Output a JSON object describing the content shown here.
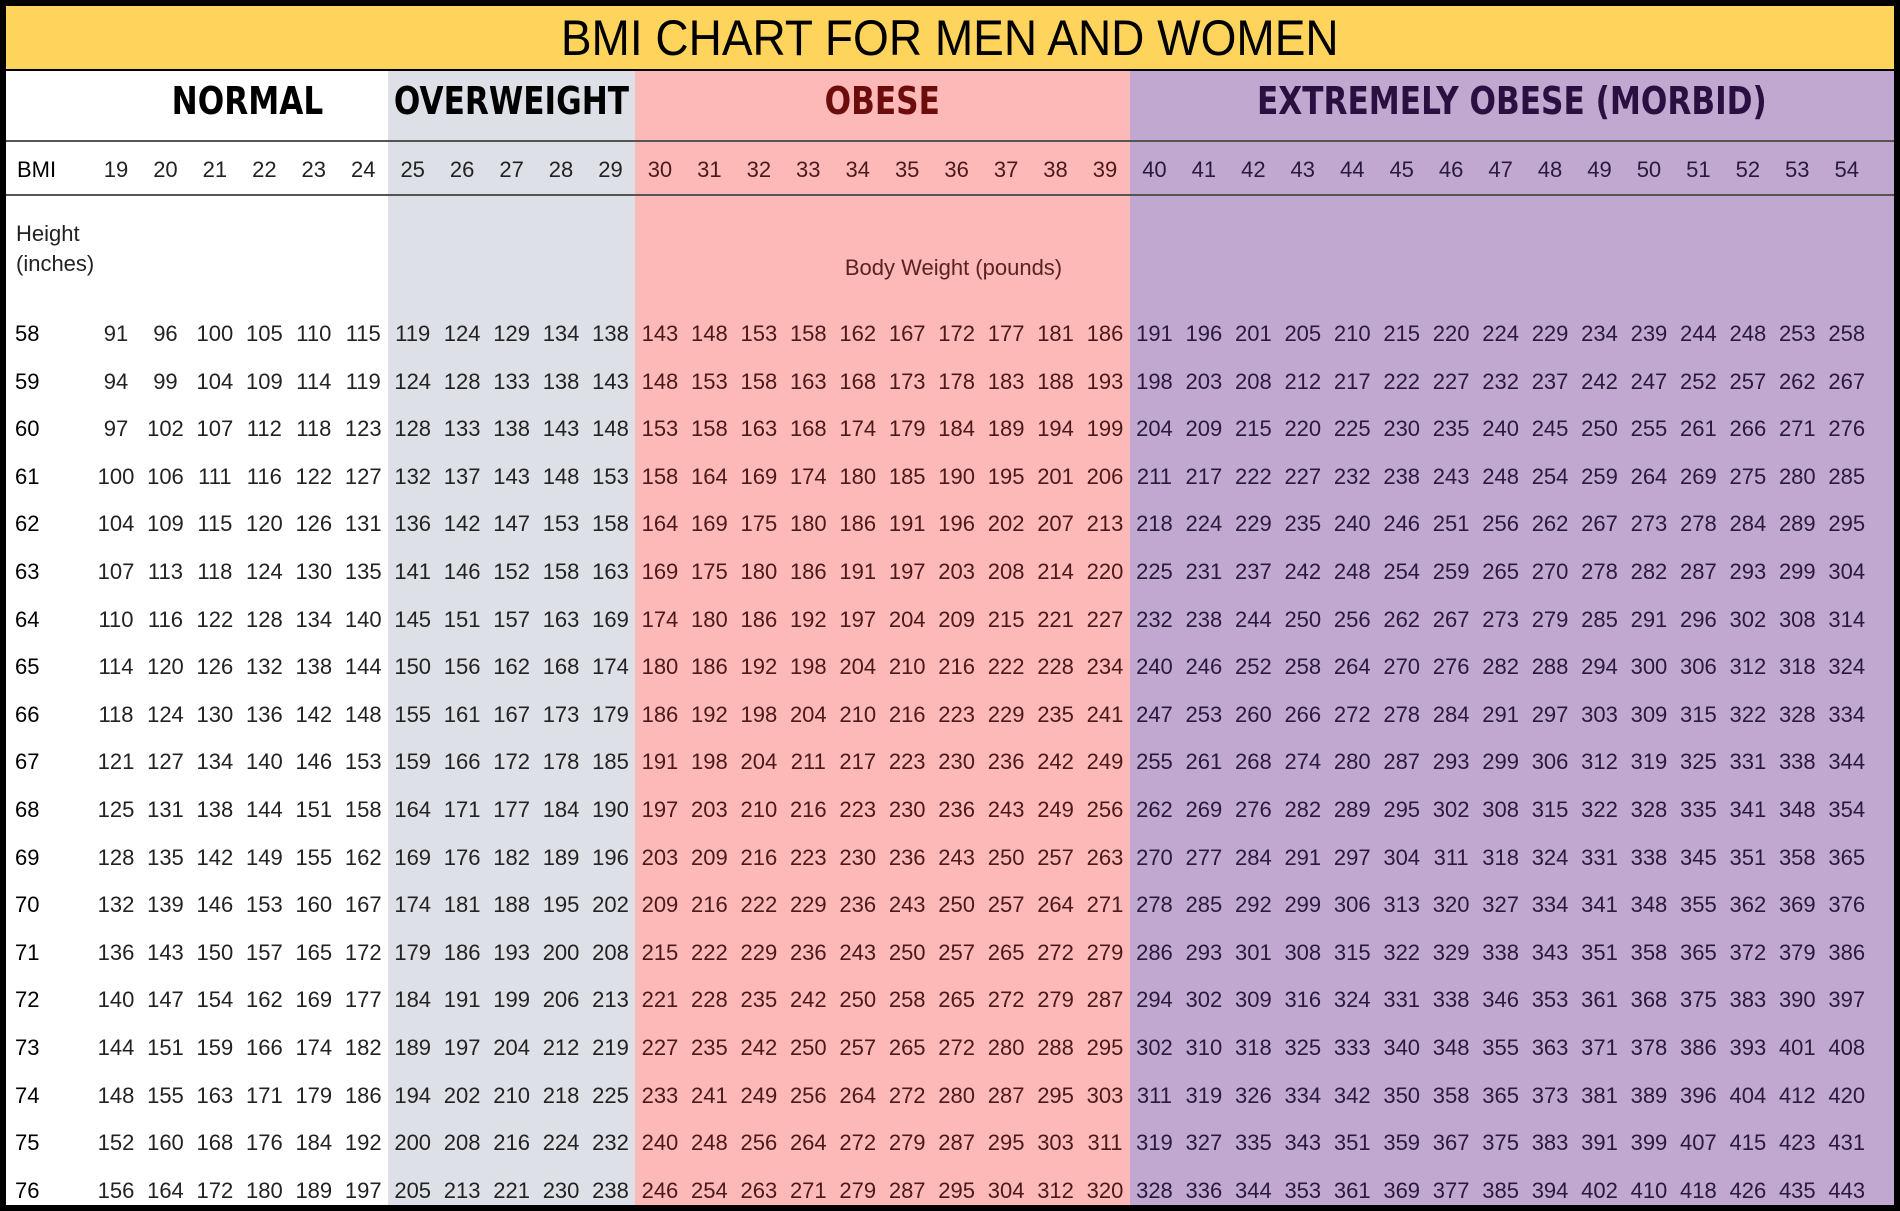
{
  "title": "BMI CHART FOR MEN AND WOMEN",
  "categories": [
    {
      "label": "NORMAL",
      "bg": "#ffffff",
      "text_color": "#000000",
      "cell_color": "#222222"
    },
    {
      "label": "OVERWEIGHT",
      "bg": "#dde0e6",
      "text_color": "#000000",
      "cell_color": "#222222"
    },
    {
      "label": "OBESE",
      "bg": "#fdb8b8",
      "text_color": "#6b0d0d",
      "cell_color": "#4a1a1a"
    },
    {
      "label": "EXTREMELY OBESE (MORBID)",
      "bg": "#c0a8d0",
      "text_color": "#2a1040",
      "cell_color": "#2a1a3a"
    }
  ],
  "header_label": "BMI",
  "height_label": "Height\n(inches)",
  "weight_label": "Body Weight (pounds)",
  "chart_data": {
    "type": "table",
    "title": "BMI CHART FOR MEN AND WOMEN",
    "bmi": [
      19,
      20,
      21,
      22,
      23,
      24,
      25,
      26,
      27,
      28,
      29,
      30,
      31,
      32,
      33,
      34,
      35,
      36,
      37,
      38,
      39,
      40,
      41,
      42,
      43,
      44,
      45,
      46,
      47,
      48,
      49,
      50,
      51,
      52,
      53,
      54
    ],
    "bmi_category_index": [
      0,
      0,
      0,
      0,
      0,
      0,
      1,
      1,
      1,
      1,
      1,
      2,
      2,
      2,
      2,
      2,
      2,
      2,
      2,
      2,
      2,
      3,
      3,
      3,
      3,
      3,
      3,
      3,
      3,
      3,
      3,
      3,
      3,
      3,
      3,
      3
    ],
    "heights": [
      58,
      59,
      60,
      61,
      62,
      63,
      64,
      65,
      66,
      67,
      68,
      69,
      70,
      71,
      72,
      73,
      74,
      75,
      76
    ],
    "weights": [
      [
        91,
        96,
        100,
        105,
        110,
        115,
        119,
        124,
        129,
        134,
        138,
        143,
        148,
        153,
        158,
        162,
        167,
        172,
        177,
        181,
        186,
        191,
        196,
        201,
        205,
        210,
        215,
        220,
        224,
        229,
        234,
        239,
        244,
        248,
        253,
        258
      ],
      [
        94,
        99,
        104,
        109,
        114,
        119,
        124,
        128,
        133,
        138,
        143,
        148,
        153,
        158,
        163,
        168,
        173,
        178,
        183,
        188,
        193,
        198,
        203,
        208,
        212,
        217,
        222,
        227,
        232,
        237,
        242,
        247,
        252,
        257,
        262,
        267
      ],
      [
        97,
        102,
        107,
        112,
        118,
        123,
        128,
        133,
        138,
        143,
        148,
        153,
        158,
        163,
        168,
        174,
        179,
        184,
        189,
        194,
        199,
        204,
        209,
        215,
        220,
        225,
        230,
        235,
        240,
        245,
        250,
        255,
        261,
        266,
        271,
        276
      ],
      [
        100,
        106,
        111,
        116,
        122,
        127,
        132,
        137,
        143,
        148,
        153,
        158,
        164,
        169,
        174,
        180,
        185,
        190,
        195,
        201,
        206,
        211,
        217,
        222,
        227,
        232,
        238,
        243,
        248,
        254,
        259,
        264,
        269,
        275,
        280,
        285
      ],
      [
        104,
        109,
        115,
        120,
        126,
        131,
        136,
        142,
        147,
        153,
        158,
        164,
        169,
        175,
        180,
        186,
        191,
        196,
        202,
        207,
        213,
        218,
        224,
        229,
        235,
        240,
        246,
        251,
        256,
        262,
        267,
        273,
        278,
        284,
        289,
        295
      ],
      [
        107,
        113,
        118,
        124,
        130,
        135,
        141,
        146,
        152,
        158,
        163,
        169,
        175,
        180,
        186,
        191,
        197,
        203,
        208,
        214,
        220,
        225,
        231,
        237,
        242,
        248,
        254,
        259,
        265,
        270,
        278,
        282,
        287,
        293,
        299,
        304
      ],
      [
        110,
        116,
        122,
        128,
        134,
        140,
        145,
        151,
        157,
        163,
        169,
        174,
        180,
        186,
        192,
        197,
        204,
        209,
        215,
        221,
        227,
        232,
        238,
        244,
        250,
        256,
        262,
        267,
        273,
        279,
        285,
        291,
        296,
        302,
        308,
        314
      ],
      [
        114,
        120,
        126,
        132,
        138,
        144,
        150,
        156,
        162,
        168,
        174,
        180,
        186,
        192,
        198,
        204,
        210,
        216,
        222,
        228,
        234,
        240,
        246,
        252,
        258,
        264,
        270,
        276,
        282,
        288,
        294,
        300,
        306,
        312,
        318,
        324
      ],
      [
        118,
        124,
        130,
        136,
        142,
        148,
        155,
        161,
        167,
        173,
        179,
        186,
        192,
        198,
        204,
        210,
        216,
        223,
        229,
        235,
        241,
        247,
        253,
        260,
        266,
        272,
        278,
        284,
        291,
        297,
        303,
        309,
        315,
        322,
        328,
        334
      ],
      [
        121,
        127,
        134,
        140,
        146,
        153,
        159,
        166,
        172,
        178,
        185,
        191,
        198,
        204,
        211,
        217,
        223,
        230,
        236,
        242,
        249,
        255,
        261,
        268,
        274,
        280,
        287,
        293,
        299,
        306,
        312,
        319,
        325,
        331,
        338,
        344
      ],
      [
        125,
        131,
        138,
        144,
        151,
        158,
        164,
        171,
        177,
        184,
        190,
        197,
        203,
        210,
        216,
        223,
        230,
        236,
        243,
        249,
        256,
        262,
        269,
        276,
        282,
        289,
        295,
        302,
        308,
        315,
        322,
        328,
        335,
        341,
        348,
        354
      ],
      [
        128,
        135,
        142,
        149,
        155,
        162,
        169,
        176,
        182,
        189,
        196,
        203,
        209,
        216,
        223,
        230,
        236,
        243,
        250,
        257,
        263,
        270,
        277,
        284,
        291,
        297,
        304,
        311,
        318,
        324,
        331,
        338,
        345,
        351,
        358,
        365
      ],
      [
        132,
        139,
        146,
        153,
        160,
        167,
        174,
        181,
        188,
        195,
        202,
        209,
        216,
        222,
        229,
        236,
        243,
        250,
        257,
        264,
        271,
        278,
        285,
        292,
        299,
        306,
        313,
        320,
        327,
        334,
        341,
        348,
        355,
        362,
        369,
        376
      ],
      [
        136,
        143,
        150,
        157,
        165,
        172,
        179,
        186,
        193,
        200,
        208,
        215,
        222,
        229,
        236,
        243,
        250,
        257,
        265,
        272,
        279,
        286,
        293,
        301,
        308,
        315,
        322,
        329,
        338,
        343,
        351,
        358,
        365,
        372,
        379,
        386
      ],
      [
        140,
        147,
        154,
        162,
        169,
        177,
        184,
        191,
        199,
        206,
        213,
        221,
        228,
        235,
        242,
        250,
        258,
        265,
        272,
        279,
        287,
        294,
        302,
        309,
        316,
        324,
        331,
        338,
        346,
        353,
        361,
        368,
        375,
        383,
        390,
        397
      ],
      [
        144,
        151,
        159,
        166,
        174,
        182,
        189,
        197,
        204,
        212,
        219,
        227,
        235,
        242,
        250,
        257,
        265,
        272,
        280,
        288,
        295,
        302,
        310,
        318,
        325,
        333,
        340,
        348,
        355,
        363,
        371,
        378,
        386,
        393,
        401,
        408
      ],
      [
        148,
        155,
        163,
        171,
        179,
        186,
        194,
        202,
        210,
        218,
        225,
        233,
        241,
        249,
        256,
        264,
        272,
        280,
        287,
        295,
        303,
        311,
        319,
        326,
        334,
        342,
        350,
        358,
        365,
        373,
        381,
        389,
        396,
        404,
        412,
        420
      ],
      [
        152,
        160,
        168,
        176,
        184,
        192,
        200,
        208,
        216,
        224,
        232,
        240,
        248,
        256,
        264,
        272,
        279,
        287,
        295,
        303,
        311,
        319,
        327,
        335,
        343,
        351,
        359,
        367,
        375,
        383,
        391,
        399,
        407,
        415,
        423,
        431
      ],
      [
        156,
        164,
        172,
        180,
        189,
        197,
        205,
        213,
        221,
        230,
        238,
        246,
        254,
        263,
        271,
        279,
        287,
        295,
        304,
        312,
        320,
        328,
        336,
        344,
        353,
        361,
        369,
        377,
        385,
        394,
        402,
        410,
        418,
        426,
        435,
        443
      ]
    ]
  }
}
